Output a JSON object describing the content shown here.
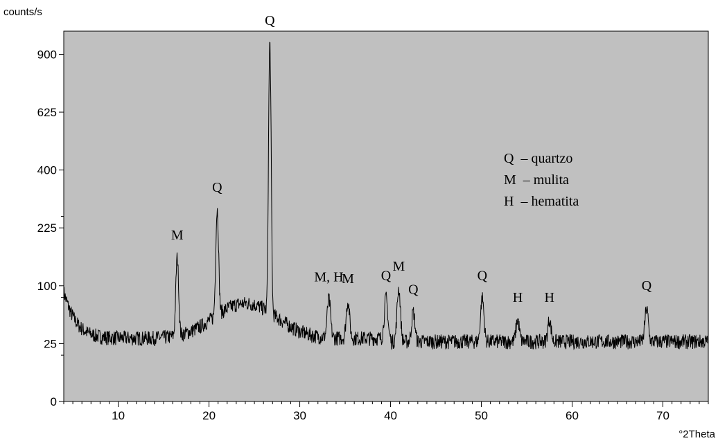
{
  "chart_data": {
    "type": "line",
    "ylabel": "counts/s",
    "xlabel": "°2Theta",
    "xlim": [
      4,
      75
    ],
    "ylim": [
      0,
      1024
    ],
    "y_scale": "sqrt",
    "y_ticks": [
      0,
      25,
      100,
      225,
      400,
      625,
      900
    ],
    "x_ticks": [
      10,
      20,
      30,
      40,
      50,
      60,
      70
    ],
    "background_color": "#c0c0c0",
    "line_color": "#000000",
    "peaks": [
      {
        "x": 16.5,
        "y": 155,
        "label": "M"
      },
      {
        "x": 20.9,
        "y": 275,
        "label": "Q"
      },
      {
        "x": 26.7,
        "y": 960,
        "label": "Q"
      },
      {
        "x": 33.2,
        "y": 78,
        "label": "M, H"
      },
      {
        "x": 35.3,
        "y": 75,
        "label": "M"
      },
      {
        "x": 39.5,
        "y": 80,
        "label": "Q"
      },
      {
        "x": 40.9,
        "y": 95,
        "label": "M"
      },
      {
        "x": 42.5,
        "y": 60,
        "label": "Q"
      },
      {
        "x": 50.1,
        "y": 80,
        "label": "Q"
      },
      {
        "x": 54.0,
        "y": 50,
        "label": "H"
      },
      {
        "x": 57.5,
        "y": 50,
        "label": "H"
      },
      {
        "x": 68.2,
        "y": 65,
        "label": "Q"
      }
    ],
    "legend": [
      "Q  – quartzo",
      "M  – mulita",
      "H  – hematita"
    ],
    "legend_position": "top-right"
  }
}
